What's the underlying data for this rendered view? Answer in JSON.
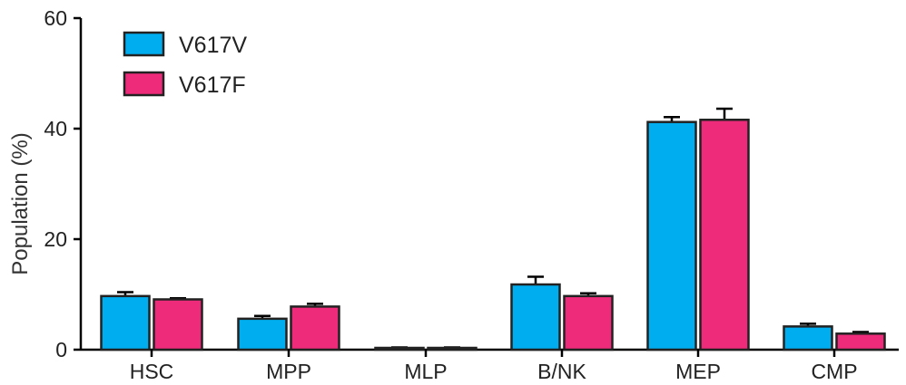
{
  "chart_data": {
    "type": "bar",
    "categories": [
      "HSC",
      "MPP",
      "MLP",
      "B/NK",
      "MEP",
      "CMP"
    ],
    "series": [
      {
        "name": "V617V",
        "color": "#00AEEF",
        "values": [
          9.7,
          5.6,
          0.2,
          11.8,
          41.2,
          4.2
        ],
        "errors": [
          0.7,
          0.5,
          0.2,
          1.4,
          0.9,
          0.5
        ]
      },
      {
        "name": "V617F",
        "color": "#EE2A7B",
        "values": [
          9.1,
          7.8,
          0.3,
          9.7,
          41.6,
          2.9
        ],
        "errors": [
          0.2,
          0.5,
          0.1,
          0.5,
          2.0,
          0.3
        ]
      }
    ],
    "ylabel": "Population (%)",
    "xlabel": "",
    "ylim": [
      0,
      60
    ],
    "yticks": [
      "0",
      "20",
      "40",
      "60"
    ],
    "grid": false,
    "legend_position": "top-left"
  }
}
